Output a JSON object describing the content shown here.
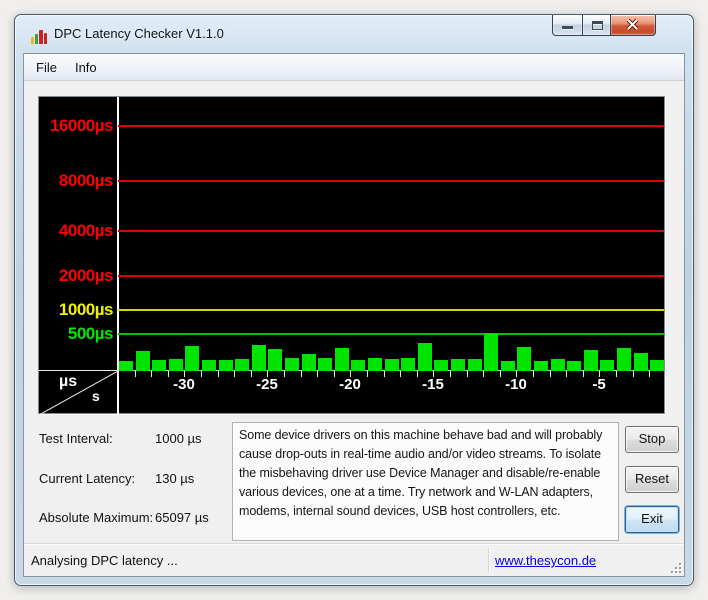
{
  "window": {
    "title": "DPC Latency Checker V1.1.0",
    "controls": {
      "minimize": "minimize",
      "maximize": "maximize",
      "close": "close"
    }
  },
  "menu": {
    "items": [
      "File",
      "Info"
    ]
  },
  "chart_data": {
    "type": "bar",
    "title": "DPC latency per second (green bars)",
    "xlabel": "s",
    "ylabel": "µs",
    "background": "#000000",
    "bar_color": "#00e400",
    "axis_color": "#ffffff",
    "y_scale": "doubling gridlines",
    "ylim": [
      0,
      24000
    ],
    "y_gridlines": [
      {
        "value": 500,
        "label": "500µs",
        "line_color": "#00c000",
        "label_color": "#00e400"
      },
      {
        "value": 1000,
        "label": "1000µs",
        "line_color": "#d8d800",
        "label_color": "#f0f000"
      },
      {
        "value": 2000,
        "label": "2000µs",
        "line_color": "#e00000",
        "label_color": "#ff0000"
      },
      {
        "value": 4000,
        "label": "4000µs",
        "line_color": "#e00000",
        "label_color": "#ff0000"
      },
      {
        "value": 8000,
        "label": "8000µs",
        "line_color": "#e00000",
        "label_color": "#ff0000"
      },
      {
        "value": 16000,
        "label": "16000µs",
        "line_color": "#e00000",
        "label_color": "#ff0000"
      }
    ],
    "x_ticks": [
      -30,
      -25,
      -20,
      -15,
      -10,
      -5
    ],
    "x_tick_labels": [
      "-30",
      "-25",
      "-20",
      "-15",
      "-10",
      "-5"
    ],
    "corner_labels": {
      "y_unit": "µs",
      "x_unit": "s"
    },
    "x": [
      -33,
      -32,
      -31,
      -30,
      -29,
      -28,
      -27,
      -26,
      -25,
      -24,
      -23,
      -22,
      -21,
      -20,
      -19,
      -18,
      -17,
      -16,
      -15,
      -14,
      -13,
      -12,
      -11,
      -10,
      -9,
      -8,
      -7,
      -6,
      -5,
      -4,
      -3,
      -2,
      -1
    ],
    "values": [
      135,
      270,
      150,
      160,
      340,
      150,
      150,
      160,
      350,
      300,
      175,
      230,
      175,
      305,
      155,
      170,
      160,
      175,
      375,
      150,
      160,
      160,
      510,
      140,
      320,
      140,
      160,
      140,
      290,
      150,
      315,
      240,
      150
    ]
  },
  "stats": [
    {
      "label": "Test Interval:",
      "value": "1000 µs"
    },
    {
      "label": "Current Latency:",
      "value": "130 µs"
    },
    {
      "label": "Absolute Maximum:",
      "value": "65097 µs"
    }
  ],
  "description": {
    "lines": [
      "Some device drivers on this machine behave bad and will probably",
      "cause drop-outs in real-time audio and/or video streams. To isolate",
      "the misbehaving driver use Device Manager and disable/re-enable",
      "various devices, one at a time. Try network and W-LAN adapters,",
      "modems, internal sound devices, USB host controllers, etc."
    ]
  },
  "buttons": [
    {
      "label": "Stop",
      "default": false
    },
    {
      "label": "Reset",
      "default": false
    },
    {
      "label": "Exit",
      "default": true
    }
  ],
  "statusbar": {
    "left_text": "Analysing DPC latency ...",
    "link_text": "www.thesycon.de"
  },
  "icon_colors": {
    "bar1": "#e8b820",
    "bar2": "#3aa03a",
    "bar3": "#cc2222",
    "bar4": "#cc2222"
  }
}
